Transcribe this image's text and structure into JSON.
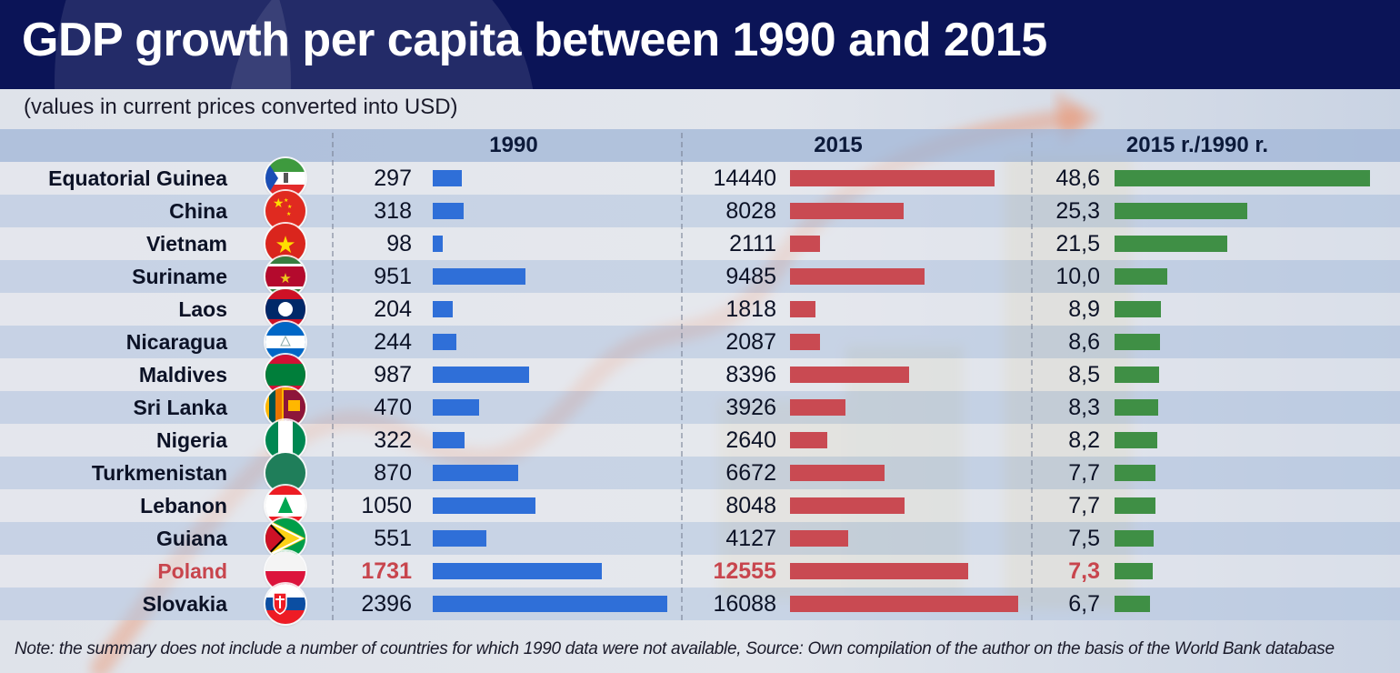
{
  "title": "GDP growth per capita between 1990 and 2015",
  "subtitle": "(values in current prices converted into USD)",
  "note": "Note: the summary does not include a number of countries for which 1990 data were not available, Source: Own compilation of the author on the basis of the World Bank database",
  "colors": {
    "banner": "#0b1457",
    "bar_1990": "#2f6fd8",
    "bar_2015": "#c94a52",
    "bar_ratio": "#3f8f45",
    "highlight_text": "#c8454d"
  },
  "chart_data": {
    "type": "bar",
    "title": "GDP growth per capita between 1990 and 2015",
    "subtitle": "(values in current prices converted into USD)",
    "orientation": "horizontal",
    "categories": [
      "Equatorial Guinea",
      "China",
      "Vietnam",
      "Suriname",
      "Laos",
      "Nicaragua",
      "Maldives",
      "Sri Lanka",
      "Nigeria",
      "Turkmenistan",
      "Lebanon",
      "Guiana",
      "Poland",
      "Slovakia"
    ],
    "highlighted": "Poland",
    "columns": [
      "1990",
      "2015",
      "2015 r./1990 r."
    ],
    "series": [
      {
        "name": "1990",
        "values": [
          297,
          318,
          98,
          951,
          204,
          244,
          987,
          470,
          322,
          870,
          1050,
          551,
          1731,
          2396
        ],
        "labels": [
          "297",
          "318",
          "98",
          "951",
          "204",
          "244",
          "987",
          "470",
          "322",
          "870",
          "1050",
          "551",
          "1731",
          "2396"
        ]
      },
      {
        "name": "2015",
        "values": [
          14440,
          8028,
          2111,
          9485,
          1818,
          2087,
          8396,
          3926,
          2640,
          6672,
          8048,
          4127,
          12555,
          16088
        ],
        "labels": [
          "14440",
          "8028",
          "2111",
          "9485",
          "1818",
          "2087",
          "8396",
          "3926",
          "2640",
          "6672",
          "8048",
          "4127",
          "12555",
          "16088"
        ]
      },
      {
        "name": "2015 r./1990 r.",
        "values": [
          48.6,
          25.3,
          21.5,
          10.0,
          8.9,
          8.6,
          8.5,
          8.3,
          8.2,
          7.7,
          7.7,
          7.5,
          7.3,
          6.7
        ],
        "labels": [
          "48,6",
          "25,3",
          "21,5",
          "10,0",
          "8,9",
          "8,6",
          "8,5",
          "8,3",
          "8,2",
          "7,7",
          "7,7",
          "7,5",
          "7,3",
          "6,7"
        ]
      }
    ],
    "flags": [
      "equatorial-guinea",
      "china",
      "vietnam",
      "suriname",
      "laos",
      "nicaragua",
      "maldives",
      "sri-lanka",
      "nigeria",
      "turkmenistan",
      "lebanon",
      "guyana",
      "poland",
      "slovakia"
    ],
    "grid": false,
    "legend": "none"
  }
}
